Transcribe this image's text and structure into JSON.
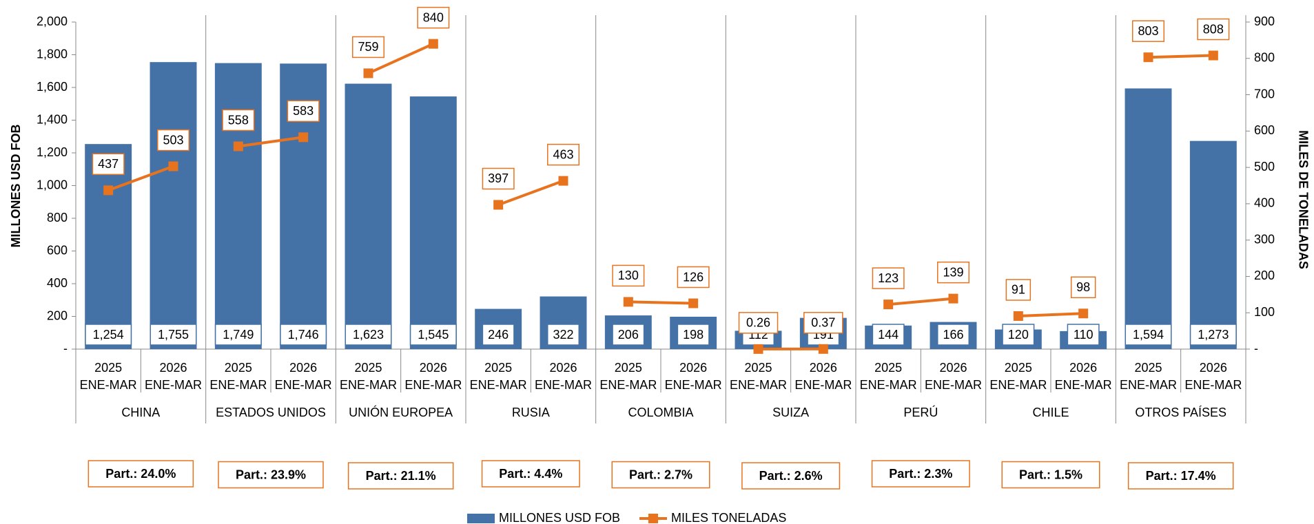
{
  "chart_data": {
    "type": "bar-line",
    "groups": [
      "CHINA",
      "ESTADOS UNIDOS",
      "UNIÓN EUROPEA",
      "RUSIA",
      "COLOMBIA",
      "SUIZA",
      "PERÚ",
      "CHILE",
      "OTROS PAÍSES"
    ],
    "categories": [
      [
        "2025",
        "ENE-MAR"
      ],
      [
        "2026",
        "ENE-MAR"
      ],
      [
        "2025",
        "ENE-MAR"
      ],
      [
        "2026",
        "ENE-MAR"
      ],
      [
        "2025",
        "ENE-MAR"
      ],
      [
        "2026",
        "ENE-MAR"
      ],
      [
        "2025",
        "ENE-MAR"
      ],
      [
        "2026",
        "ENE-MAR"
      ],
      [
        "2025",
        "ENE-MAR"
      ],
      [
        "2026",
        "ENE-MAR"
      ],
      [
        "2025",
        "ENE-MAR"
      ],
      [
        "2026",
        "ENE-MAR"
      ],
      [
        "2025",
        "ENE-MAR"
      ],
      [
        "2026",
        "ENE-MAR"
      ],
      [
        "2025",
        "ENE-MAR"
      ],
      [
        "2026",
        "ENE-MAR"
      ],
      [
        "2025",
        "ENE-MAR"
      ],
      [
        "2026",
        "ENE-MAR"
      ]
    ],
    "series": [
      {
        "name": "MILLONES USD FOB",
        "color": "#4472a6",
        "kind": "bar",
        "values": [
          1254,
          1755,
          1749,
          1746,
          1623,
          1545,
          246,
          322,
          206,
          198,
          112,
          191,
          144,
          166,
          120,
          110,
          1594,
          1273
        ],
        "value_labels": [
          "1,254",
          "1,755",
          "1,749",
          "1,746",
          "1,623",
          "1,545",
          "246",
          "322",
          "206",
          "198",
          "112",
          "191",
          "144",
          "166",
          "120",
          "110",
          "1,594",
          "1,273"
        ]
      },
      {
        "name": "MILES TONELADAS",
        "color": "#e8731e",
        "kind": "line",
        "axis": "y2",
        "values": [
          437,
          503,
          558,
          583,
          759,
          840,
          397,
          463,
          130,
          126,
          0.26,
          0.37,
          123,
          139,
          91,
          98,
          803,
          808
        ]
      }
    ],
    "shares": [
      "Part.: 24.0%",
      "Part.: 23.9%",
      "Part.: 21.1%",
      "Part.: 4.4%",
      "Part.: 2.7%",
      "Part.: 2.6%",
      "Part.: 2.3%",
      "Part.: 1.5%",
      "Part.: 17.4%"
    ],
    "ylabel": "MILLONES USD FOB",
    "y2label": "MILES DE TONELADAS",
    "ylim": [
      0,
      2000
    ],
    "yticks": [
      {
        "value": 0,
        "label": "-"
      },
      200,
      400,
      600,
      800,
      {
        "value": 1000,
        "label": "1,000"
      },
      {
        "value": 1200,
        "label": "1,200"
      },
      {
        "value": 1400,
        "label": "1,400"
      },
      {
        "value": 1600,
        "label": "1,600"
      },
      {
        "value": 1800,
        "label": "1,800"
      },
      {
        "value": 2000,
        "label": "2,000"
      }
    ],
    "y2lim": [
      0,
      900
    ],
    "y2ticks": [
      {
        "value": 0,
        "label": "-"
      },
      100,
      200,
      300,
      400,
      500,
      600,
      700,
      800,
      900
    ]
  }
}
